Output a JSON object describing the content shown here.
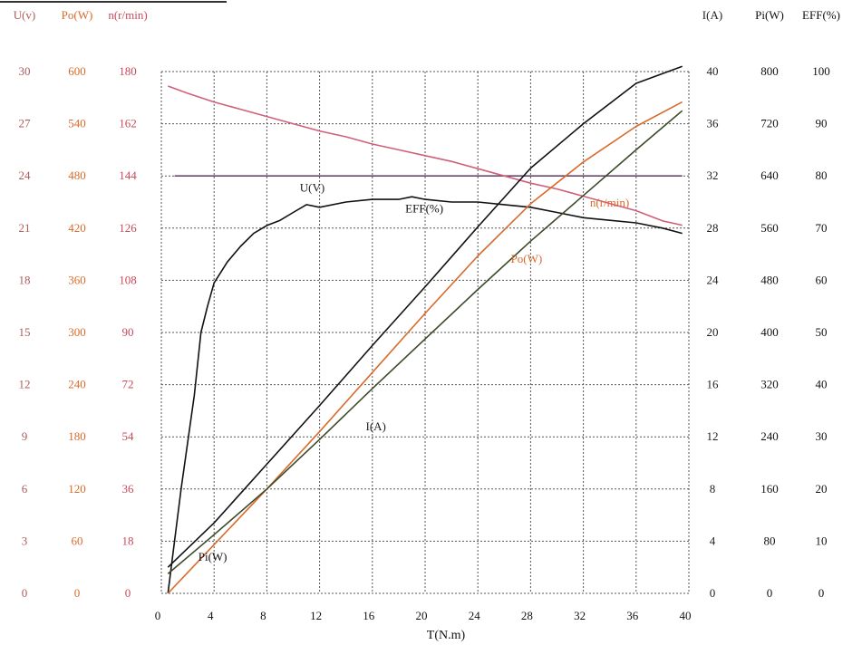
{
  "chart_data": {
    "type": "line",
    "xlabel": "T(N.m)",
    "xlim": [
      0,
      40
    ],
    "x_ticks": [
      "0",
      "4",
      "8",
      "12",
      "16",
      "20",
      "24",
      "28",
      "32",
      "36",
      "40"
    ],
    "grid": true,
    "left_axes": [
      {
        "header": "U(v)",
        "color": "#b05a5a",
        "ticks": [
          "0",
          "3",
          "6",
          "9",
          "12",
          "15",
          "18",
          "21",
          "24",
          "27",
          "30"
        ]
      },
      {
        "header": "Po(W)",
        "color": "#d96a2a",
        "ticks": [
          "0",
          "60",
          "120",
          "180",
          "240",
          "300",
          "360",
          "420",
          "480",
          "540",
          "600"
        ]
      },
      {
        "header": "n(r/min)",
        "color": "#c94a5a",
        "ticks": [
          "0",
          "18",
          "36",
          "54",
          "72",
          "90",
          "108",
          "126",
          "144",
          "162",
          "180"
        ]
      }
    ],
    "right_axes": [
      {
        "header": "I(A)",
        "color": "#222222",
        "ticks": [
          "0",
          "4",
          "8",
          "12",
          "16",
          "20",
          "24",
          "28",
          "32",
          "36",
          "40"
        ]
      },
      {
        "header": "Pi(W)",
        "color": "#111111",
        "ticks": [
          "0",
          "80",
          "160",
          "240",
          "320",
          "400",
          "480",
          "560",
          "640",
          "720",
          "800"
        ]
      },
      {
        "header": "EFF(%)",
        "color": "#111111",
        "ticks": [
          "0",
          "10",
          "20",
          "30",
          "40",
          "50",
          "60",
          "70",
          "80",
          "90",
          "100"
        ]
      }
    ],
    "series": [
      {
        "name": "U(V)",
        "axis": "U(v)",
        "color": "#6b4a6b",
        "x": [
          1,
          39.5
        ],
        "y": [
          24,
          24
        ]
      },
      {
        "name": "n(r/min)",
        "axis": "n(r/min)",
        "color": "#d0607a",
        "x": [
          0.5,
          2,
          4,
          6,
          8,
          10,
          12,
          14,
          16,
          18,
          20,
          22,
          24,
          26,
          28,
          30,
          32,
          34,
          36,
          38,
          39.5
        ],
        "y": [
          175,
          172.5,
          169.5,
          167,
          164.5,
          162,
          159.5,
          157.5,
          155,
          153,
          151,
          149,
          146.5,
          144,
          141.5,
          139.5,
          137,
          134.5,
          132,
          128.5,
          127
        ]
      },
      {
        "name": "EFF(%)",
        "axis": "EFF(%)",
        "color": "#111111",
        "x": [
          0.5,
          1.5,
          2.5,
          3,
          3.5,
          4,
          5,
          6,
          7,
          8,
          9,
          10,
          11,
          12,
          14,
          16,
          18,
          19,
          20,
          22,
          24,
          26,
          28,
          30,
          32,
          34,
          36,
          38,
          39.5
        ],
        "y": [
          0,
          20,
          38,
          50,
          55,
          59.5,
          63.5,
          66.5,
          69,
          70.5,
          71.5,
          73,
          74.5,
          74,
          75,
          75.5,
          75.5,
          76,
          75.5,
          75,
          75,
          74.5,
          74,
          73,
          72,
          71.5,
          71,
          70,
          69
        ]
      },
      {
        "name": "Po(W)",
        "axis": "Po(W)",
        "color": "#d96a2a",
        "x": [
          0.5,
          4,
          8,
          12,
          16,
          20,
          24,
          28,
          32,
          36,
          39.5
        ],
        "y": [
          0,
          56,
          120,
          186,
          254,
          322,
          388,
          448,
          496,
          537,
          565
        ]
      },
      {
        "name": "Pi(W)",
        "axis": "Pi(W)",
        "color": "#111111",
        "x": [
          0.5,
          4,
          8,
          12,
          16,
          20,
          24,
          28,
          32,
          36,
          39.5
        ],
        "y": [
          40,
          108,
          198,
          288,
          380,
          470,
          562,
          652,
          720,
          782,
          808
        ]
      },
      {
        "name": "I(A)",
        "axis": "I(A)",
        "color": "#3a4a2a",
        "x": [
          0.5,
          4,
          8,
          12,
          16,
          20,
          24,
          28,
          32,
          36,
          39.5
        ],
        "y": [
          1.5,
          4.5,
          8,
          11.8,
          15.7,
          19.5,
          23.3,
          27,
          30.5,
          34,
          37
        ]
      }
    ],
    "labels": [
      {
        "text": "U(V)",
        "axis": "U(v)",
        "x": 10.5,
        "y": 23.1,
        "color": "#222222"
      },
      {
        "text": "n(r/min)",
        "axis": "n(r/min)",
        "x": 32.5,
        "y": 133.5,
        "color": "#d96a2a"
      },
      {
        "text": "EFF(%)",
        "axis": "EFF(%)",
        "x": 18.5,
        "y": 73,
        "color": "#111111"
      },
      {
        "text": "Po(W)",
        "axis": "Po(W)",
        "x": 26.5,
        "y": 380,
        "color": "#d96a2a"
      },
      {
        "text": "I(A)",
        "axis": "I(A)",
        "x": 15.5,
        "y": 12.5,
        "color": "#222222"
      },
      {
        "text": "Pi(W)",
        "axis": "Pi(W)",
        "x": 2.8,
        "y": 50,
        "color": "#111111"
      }
    ]
  }
}
